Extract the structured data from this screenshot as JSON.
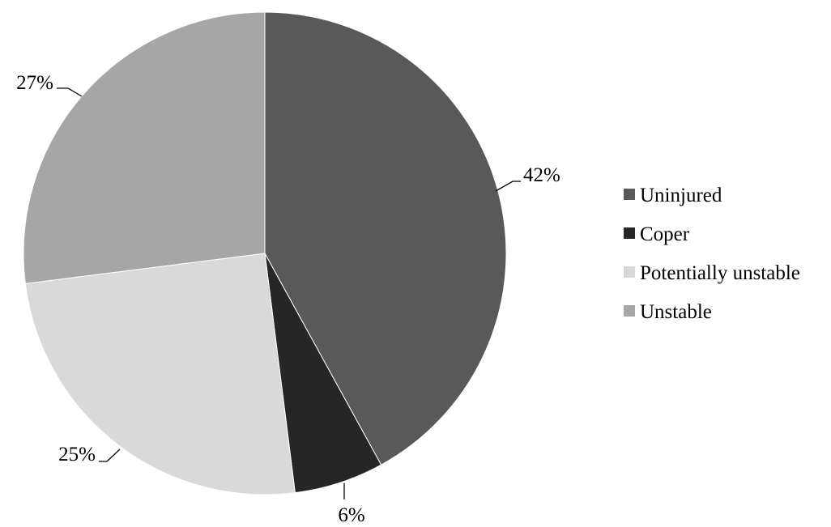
{
  "chart_data": {
    "type": "pie",
    "title": "",
    "legend_position": "right",
    "slices": [
      {
        "name": "Uninjured",
        "value": 42,
        "label": "42%",
        "color": "#595959"
      },
      {
        "name": "Coper",
        "value": 6,
        "label": "6%",
        "color": "#262626"
      },
      {
        "name": "Potentially unstable",
        "value": 25,
        "label": "25%",
        "color": "#d9d9d9"
      },
      {
        "name": "Unstable",
        "value": 27,
        "label": "27%",
        "color": "#a6a6a6"
      }
    ]
  }
}
